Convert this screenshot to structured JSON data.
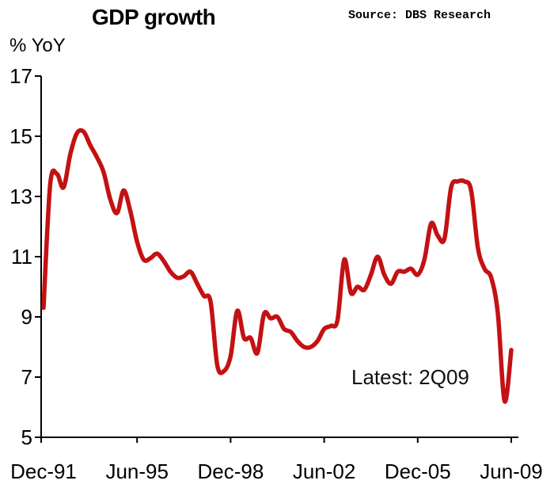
{
  "header": {
    "title": "GDP growth",
    "source": "Source: DBS Research"
  },
  "axis": {
    "y_unit": "% YoY"
  },
  "annotation": {
    "latest": "Latest: 2Q09"
  },
  "chart_data": {
    "type": "line",
    "title": "GDP growth",
    "ylabel": "% YoY",
    "source": "Source: DBS Research",
    "annotation": "Latest: 2Q09",
    "series_name": "GDP growth, % YoY (quarterly)",
    "frequency": "quarterly",
    "ylim": [
      5,
      17
    ],
    "y_ticks": [
      5,
      7,
      9,
      11,
      13,
      15,
      17
    ],
    "x_tick_labels": [
      "Dec-91",
      "Jun-95",
      "Dec-98",
      "Jun-02",
      "Dec-05",
      "Jun-09"
    ],
    "x_tick_indices": [
      0,
      14,
      28,
      42,
      56,
      70
    ],
    "grid": false,
    "legend": "none",
    "line_color": "#c31114",
    "axis_color": "#000000",
    "latest": {
      "label": "2Q09",
      "value": 7.9
    },
    "x_labels": [
      "Dec-91",
      "Mar-92",
      "Jun-92",
      "Sep-92",
      "Dec-92",
      "Mar-93",
      "Jun-93",
      "Sep-93",
      "Dec-93",
      "Mar-94",
      "Jun-94",
      "Sep-94",
      "Dec-94",
      "Mar-95",
      "Jun-95",
      "Sep-95",
      "Dec-95",
      "Mar-96",
      "Jun-96",
      "Sep-96",
      "Dec-96",
      "Mar-97",
      "Jun-97",
      "Sep-97",
      "Dec-97",
      "Mar-98",
      "Jun-98",
      "Sep-98",
      "Dec-98",
      "Mar-99",
      "Jun-99",
      "Sep-99",
      "Dec-99",
      "Mar-00",
      "Jun-00",
      "Sep-00",
      "Dec-00",
      "Mar-01",
      "Jun-01",
      "Sep-01",
      "Dec-01",
      "Mar-02",
      "Jun-02",
      "Sep-02",
      "Dec-02",
      "Mar-03",
      "Jun-03",
      "Sep-03",
      "Dec-03",
      "Mar-04",
      "Jun-04",
      "Sep-04",
      "Dec-04",
      "Mar-05",
      "Jun-05",
      "Sep-05",
      "Dec-05",
      "Mar-06",
      "Jun-06",
      "Sep-06",
      "Dec-06",
      "Mar-07",
      "Jun-07",
      "Sep-07",
      "Dec-07",
      "Mar-08",
      "Jun-08",
      "Sep-08",
      "Dec-08",
      "Mar-09",
      "Jun-09"
    ],
    "values": [
      9.3,
      13.4,
      13.75,
      13.3,
      14.4,
      15.1,
      15.15,
      14.7,
      14.3,
      13.8,
      12.9,
      12.45,
      13.2,
      12.5,
      11.5,
      10.9,
      10.95,
      11.1,
      10.85,
      10.5,
      10.3,
      10.35,
      10.5,
      10.1,
      9.7,
      9.5,
      7.4,
      7.2,
      7.7,
      9.2,
      8.3,
      8.3,
      7.8,
      9.1,
      8.95,
      9.0,
      8.6,
      8.5,
      8.2,
      8.0,
      8.0,
      8.2,
      8.6,
      8.7,
      8.9,
      10.9,
      9.8,
      10.0,
      9.9,
      10.4,
      11.0,
      10.4,
      10.1,
      10.5,
      10.5,
      10.6,
      10.4,
      10.9,
      12.1,
      11.7,
      11.6,
      13.3,
      13.5,
      13.5,
      13.2,
      11.3,
      10.6,
      10.3,
      9.1,
      6.2,
      7.9
    ]
  }
}
